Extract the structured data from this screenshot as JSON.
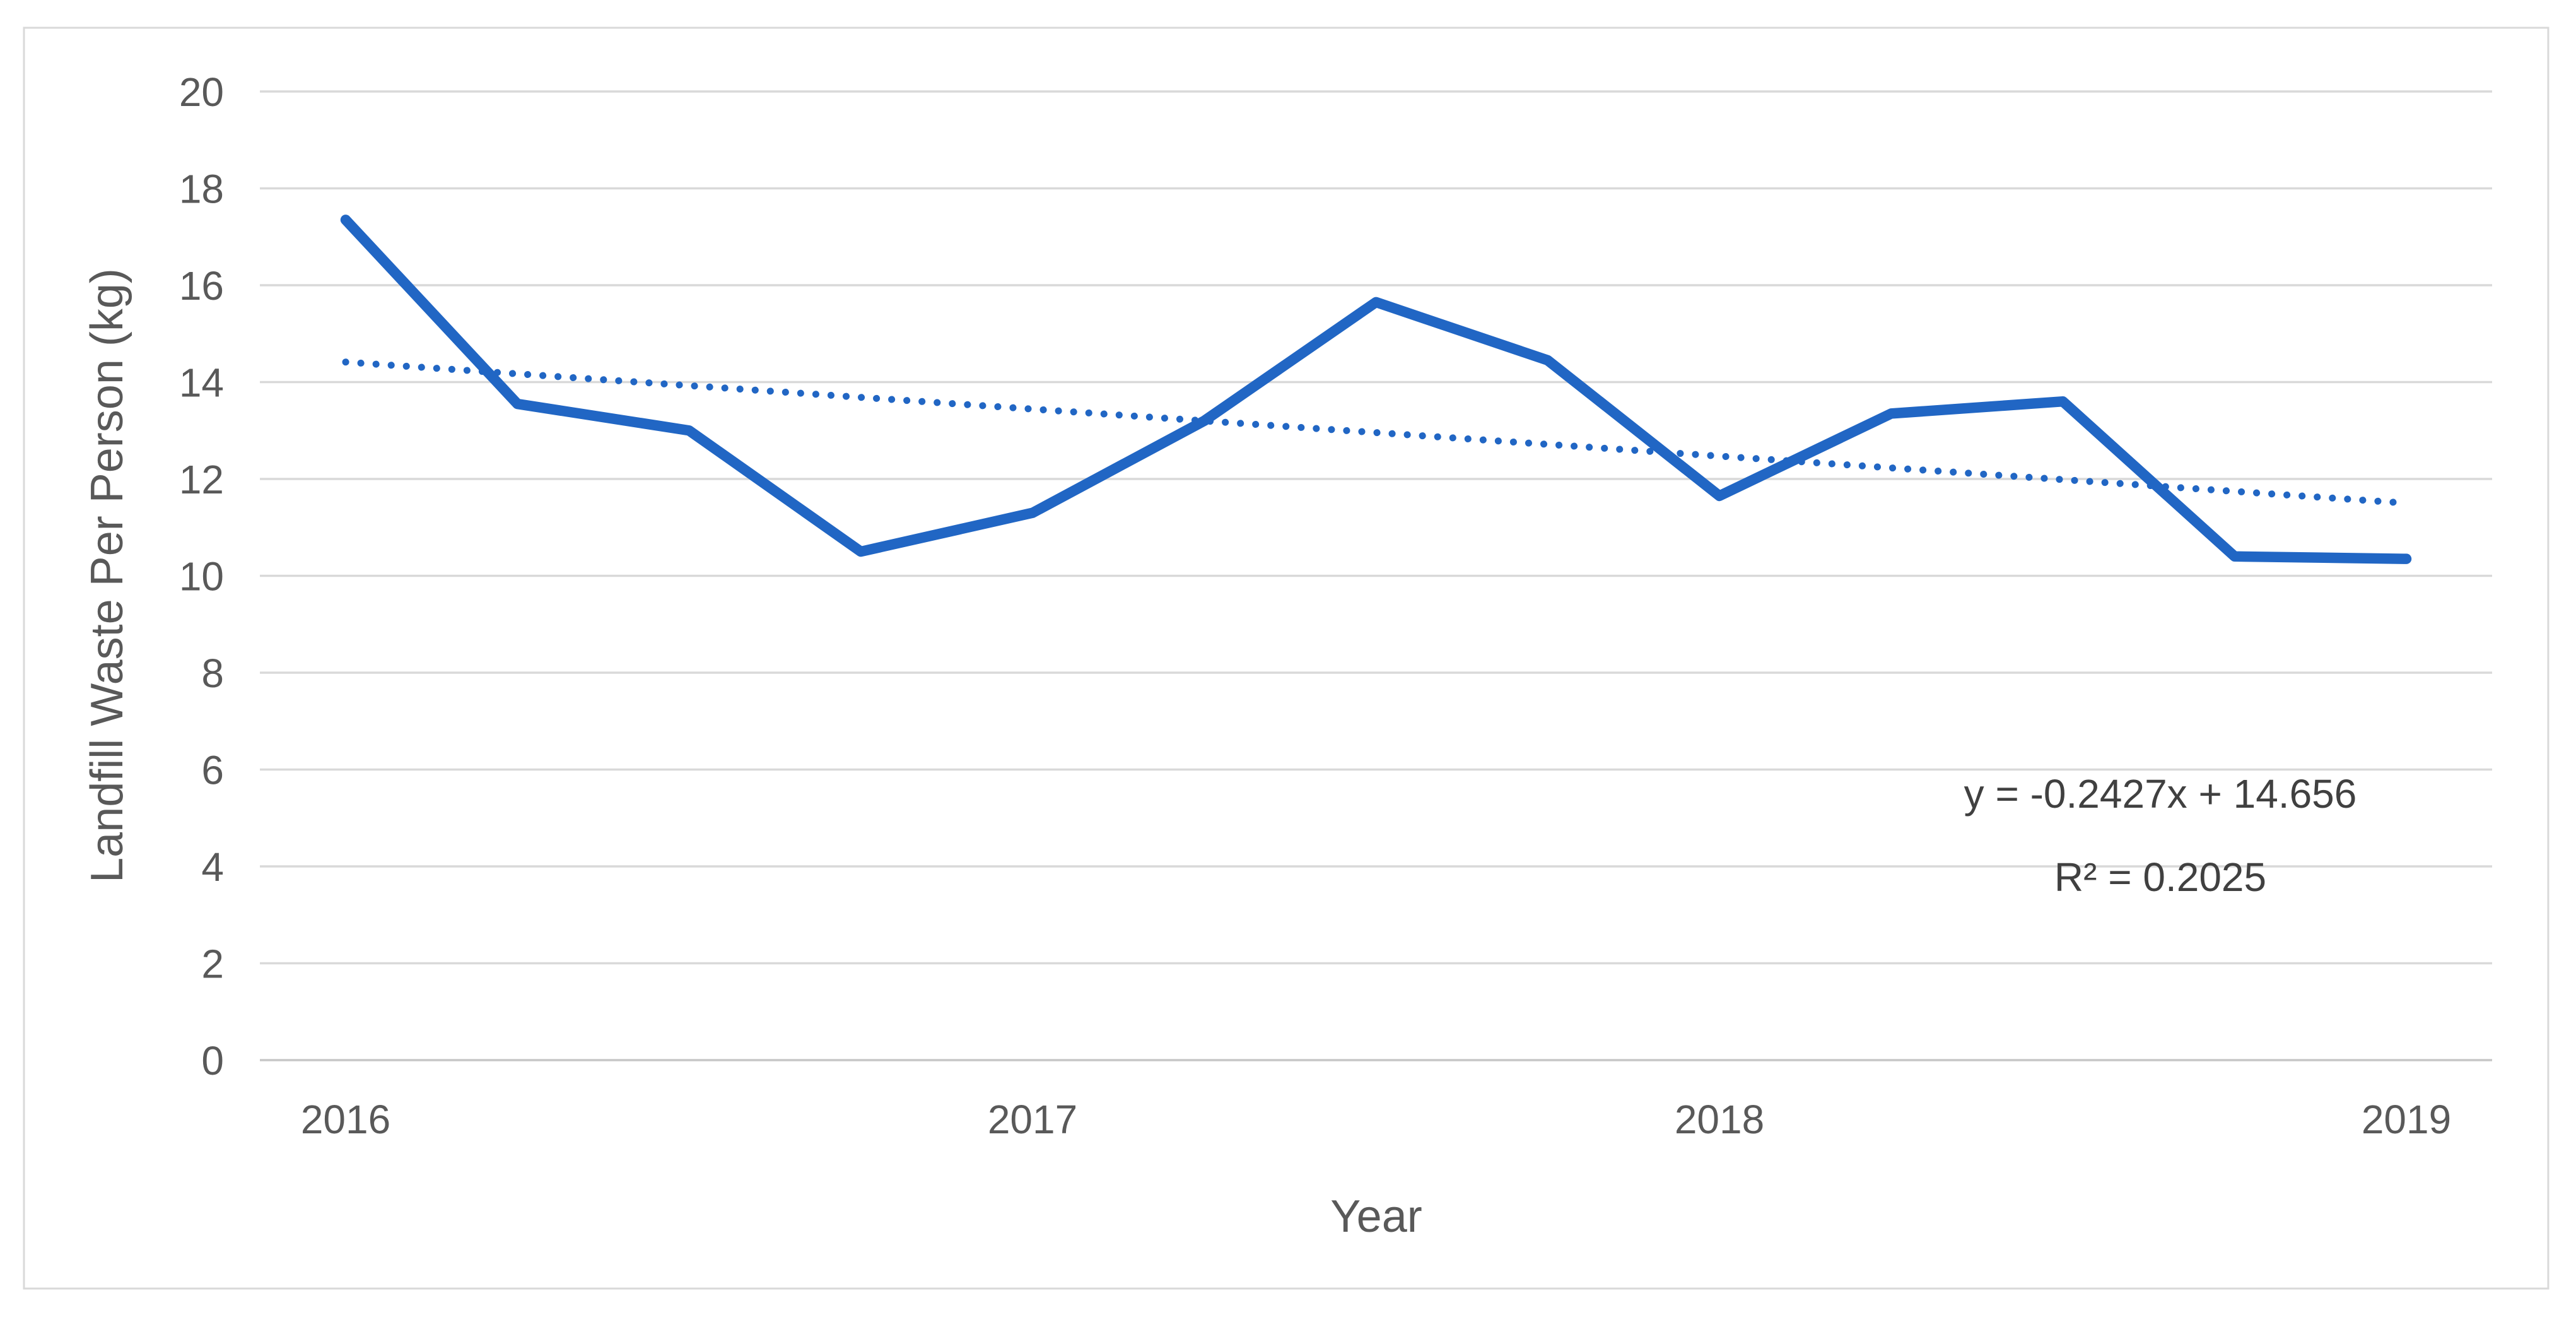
{
  "chart_data": {
    "type": "line",
    "title": "",
    "xlabel": "Year",
    "ylabel": "Landfill Waste Per Person (kg)",
    "ylim": [
      0,
      20
    ],
    "ytick_step": 2,
    "y_tick_labels": [
      "0",
      "2",
      "4",
      "6",
      "8",
      "10",
      "12",
      "14",
      "16",
      "18",
      "20"
    ],
    "num_points": 13,
    "x_ticks": [
      {
        "label": "2016",
        "index": 0
      },
      {
        "label": "2017",
        "index": 4
      },
      {
        "label": "2018",
        "index": 8
      },
      {
        "label": "2019",
        "index": 12
      }
    ],
    "series": [
      {
        "name": "Landfill Waste Per Person",
        "values": [
          17.35,
          13.55,
          13.0,
          10.5,
          11.3,
          13.2,
          15.65,
          14.45,
          11.65,
          13.35,
          13.6,
          10.4,
          10.35
        ]
      }
    ],
    "trendline": {
      "style": "dotted",
      "slope": -0.2427,
      "intercept": 14.656,
      "label_line1": "y = -0.2427x + 14.656",
      "label_line2": "R² = 0.2025"
    },
    "grid": true,
    "legend_position": "none",
    "colors": {
      "series": "#2166C4",
      "trendline": "#2166C4",
      "gridline": "#D9D9D9",
      "axis_line": "#C6C6C6",
      "tick_text": "#595959",
      "annotation_text": "#404040",
      "border": "#D9D9D9",
      "background": "#FFFFFF"
    }
  }
}
